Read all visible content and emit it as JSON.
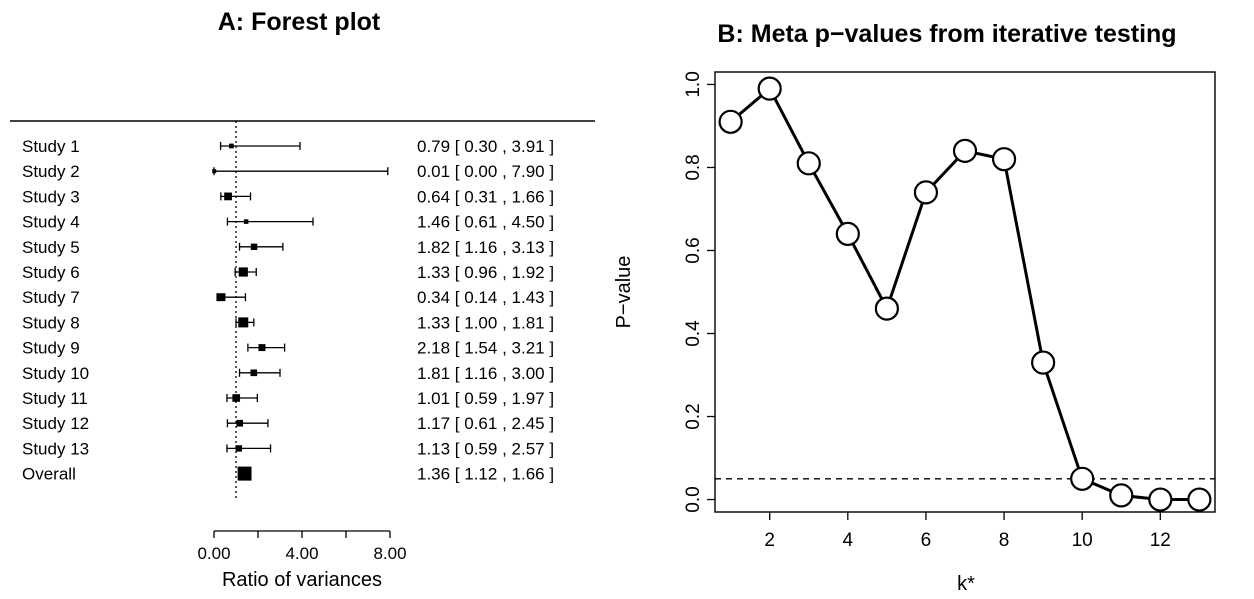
{
  "chart_data": [
    {
      "type": "forest",
      "title": "A: Forest plot",
      "xlabel": "Ratio of variances",
      "xlim": [
        0,
        8.5
      ],
      "xticks": [
        "0.00",
        "4.00",
        "8.00"
      ],
      "xtick_values": [
        0,
        4,
        8
      ],
      "reference_line": 1,
      "studies": [
        {
          "label": "Study 1",
          "est": 0.79,
          "lo": 0.3,
          "hi": 3.91,
          "text": "0.79 [ 0.30 , 3.91 ]"
        },
        {
          "label": "Study 2",
          "est": 0.01,
          "lo": 0.0,
          "hi": 7.9,
          "text": "0.01 [ 0.00 , 7.90 ]"
        },
        {
          "label": "Study 3",
          "est": 0.64,
          "lo": 0.31,
          "hi": 1.66,
          "text": "0.64 [ 0.31 , 1.66 ]"
        },
        {
          "label": "Study 4",
          "est": 1.46,
          "lo": 0.61,
          "hi": 4.5,
          "text": "1.46 [ 0.61 , 4.50 ]"
        },
        {
          "label": "Study 5",
          "est": 1.82,
          "lo": 1.16,
          "hi": 3.13,
          "text": "1.82 [ 1.16 , 3.13 ]"
        },
        {
          "label": "Study 6",
          "est": 1.33,
          "lo": 0.96,
          "hi": 1.92,
          "text": "1.33 [ 0.96 , 1.92 ]"
        },
        {
          "label": "Study 7",
          "est": 0.34,
          "lo": 0.14,
          "hi": 1.43,
          "text": "0.34 [ 0.14 , 1.43 ]"
        },
        {
          "label": "Study 8",
          "est": 1.33,
          "lo": 1.0,
          "hi": 1.81,
          "text": "1.33 [ 1.00 , 1.81 ]"
        },
        {
          "label": "Study 9",
          "est": 2.18,
          "lo": 1.54,
          "hi": 3.21,
          "text": "2.18 [ 1.54 , 3.21 ]"
        },
        {
          "label": "Study 10",
          "est": 1.81,
          "lo": 1.16,
          "hi": 3.0,
          "text": "1.81 [ 1.16 , 3.00 ]"
        },
        {
          "label": "Study 11",
          "est": 1.01,
          "lo": 0.59,
          "hi": 1.97,
          "text": "1.01 [ 0.59 , 1.97 ]"
        },
        {
          "label": "Study 12",
          "est": 1.17,
          "lo": 0.61,
          "hi": 2.45,
          "text": "1.17 [ 0.61 , 2.45 ]"
        },
        {
          "label": "Study 13",
          "est": 1.13,
          "lo": 0.59,
          "hi": 2.57,
          "text": "1.13 [ 0.59 , 2.57 ]"
        }
      ],
      "overall": {
        "label": "Overall",
        "est": 1.36,
        "lo": 1.12,
        "hi": 1.66,
        "text": "1.36 [ 1.12 , 1.66 ]"
      }
    },
    {
      "type": "line",
      "title": "B: Meta p−values from iterative testing",
      "xlabel": "k*",
      "ylabel": "P−value",
      "xlim": [
        0.6,
        13.4
      ],
      "ylim": [
        -0.03,
        1.03
      ],
      "xticks": [
        2,
        4,
        6,
        8,
        10,
        12
      ],
      "yticks": [
        "0.0",
        "0.2",
        "0.4",
        "0.6",
        "0.8",
        "1.0"
      ],
      "ytick_values": [
        0,
        0.2,
        0.4,
        0.6,
        0.8,
        1.0
      ],
      "x": [
        1,
        2,
        3,
        4,
        5,
        6,
        7,
        8,
        9,
        10,
        11,
        12,
        13
      ],
      "y": [
        0.91,
        0.99,
        0.81,
        0.64,
        0.46,
        0.74,
        0.84,
        0.82,
        0.33,
        0.05,
        0.01,
        0.0,
        0.0
      ],
      "threshold": 0.05,
      "grid": false
    }
  ]
}
